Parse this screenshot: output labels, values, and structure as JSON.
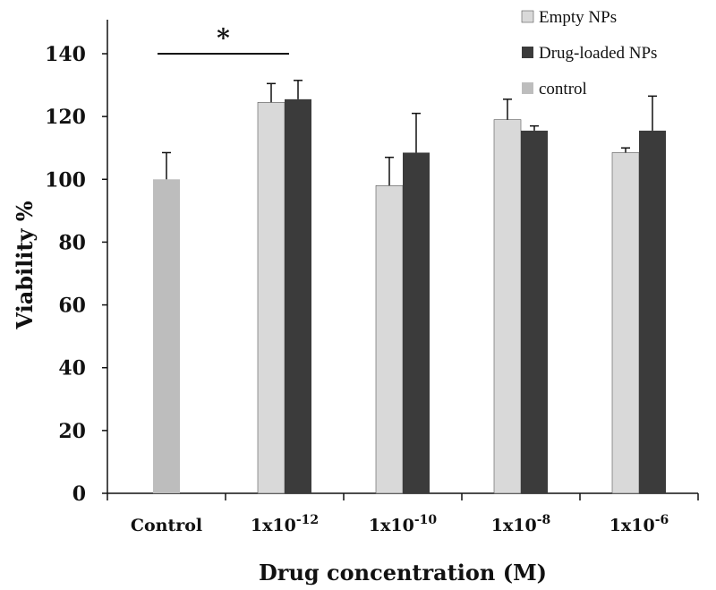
{
  "chart_data": {
    "type": "bar",
    "xlabel": "Drug concentration (M)",
    "ylabel": "Viability %",
    "ylim": [
      0,
      140
    ],
    "yticks": [
      0,
      20,
      40,
      60,
      80,
      100,
      120,
      140
    ],
    "grid": false,
    "legend_position": "top-right",
    "categories": [
      {
        "label": "Control",
        "base": "",
        "exp": ""
      },
      {
        "label": "",
        "base": "1x10",
        "exp": "-12"
      },
      {
        "label": "",
        "base": "1x10",
        "exp": "-10"
      },
      {
        "label": "",
        "base": "1x10",
        "exp": "-8"
      },
      {
        "label": "",
        "base": "1x10",
        "exp": "-6"
      }
    ],
    "series": [
      {
        "name": "Empty NPs",
        "color": "#d9d9d9",
        "values": [
          null,
          124.5,
          98,
          119,
          108.5
        ],
        "errors": [
          null,
          6,
          9,
          6.5,
          1.5
        ]
      },
      {
        "name": "Drug-loaded NPs",
        "color": "#3b3b3b",
        "values": [
          null,
          125.5,
          108.5,
          115.5,
          115.5
        ],
        "errors": [
          null,
          6,
          12.5,
          1.5,
          11
        ]
      },
      {
        "name": "control",
        "color": "#bdbdbd",
        "values": [
          100,
          null,
          null,
          null,
          null
        ],
        "errors": [
          8.5,
          null,
          null,
          null,
          null
        ]
      }
    ],
    "annotations": [
      {
        "text": "*",
        "from_category": 0,
        "to_category": 1,
        "y": 140
      }
    ]
  }
}
